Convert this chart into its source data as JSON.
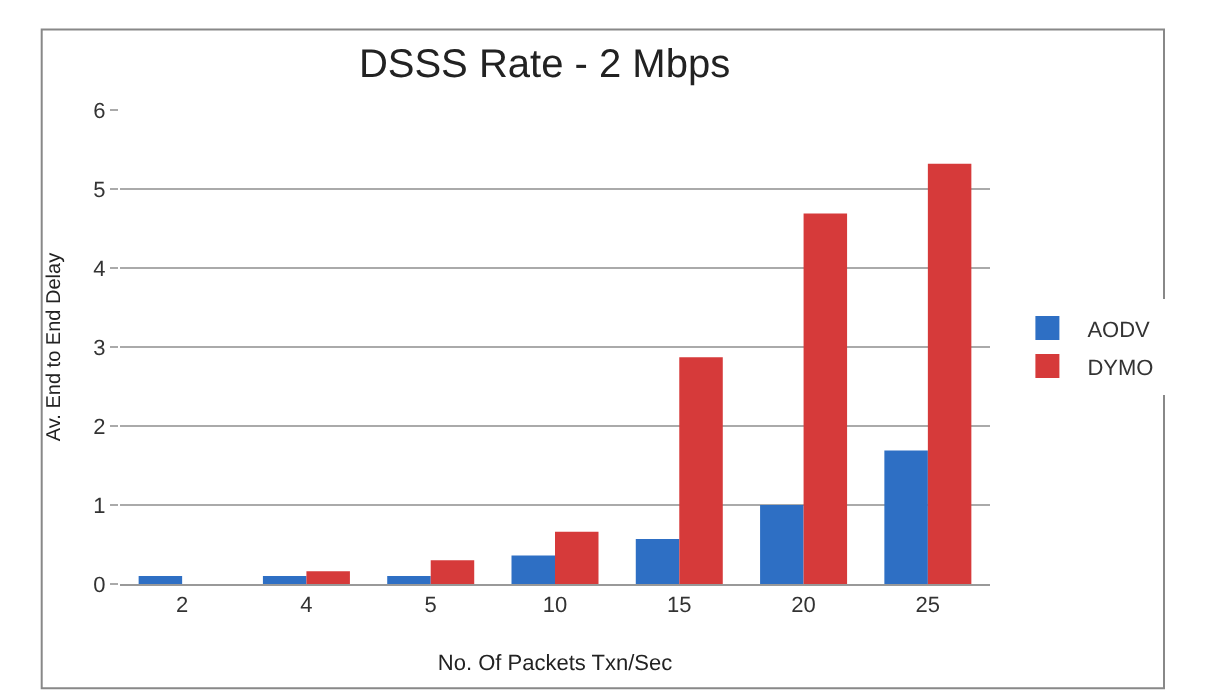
{
  "chart_data": {
    "type": "bar",
    "title": "DSSS Rate - 2 Mbps",
    "xlabel": "No. Of Packets Txn/Sec",
    "ylabel": "Av. End to End Delay",
    "categories": [
      "2",
      "4",
      "5",
      "10",
      "15",
      "20",
      "25"
    ],
    "series": [
      {
        "name": "AODV",
        "color": "#2e6fc4",
        "values": [
          0.1,
          0.1,
          0.1,
          0.36,
          0.57,
          1.0,
          1.69
        ]
      },
      {
        "name": "DYMO",
        "color": "#d63a3a",
        "values": [
          0,
          0.16,
          0.3,
          0.66,
          2.87,
          4.69,
          5.32
        ]
      }
    ],
    "ylim": [
      0,
      6
    ],
    "yticks": [
      0,
      1,
      2,
      3,
      4,
      5,
      6
    ],
    "grid": "y",
    "legend": "right"
  }
}
